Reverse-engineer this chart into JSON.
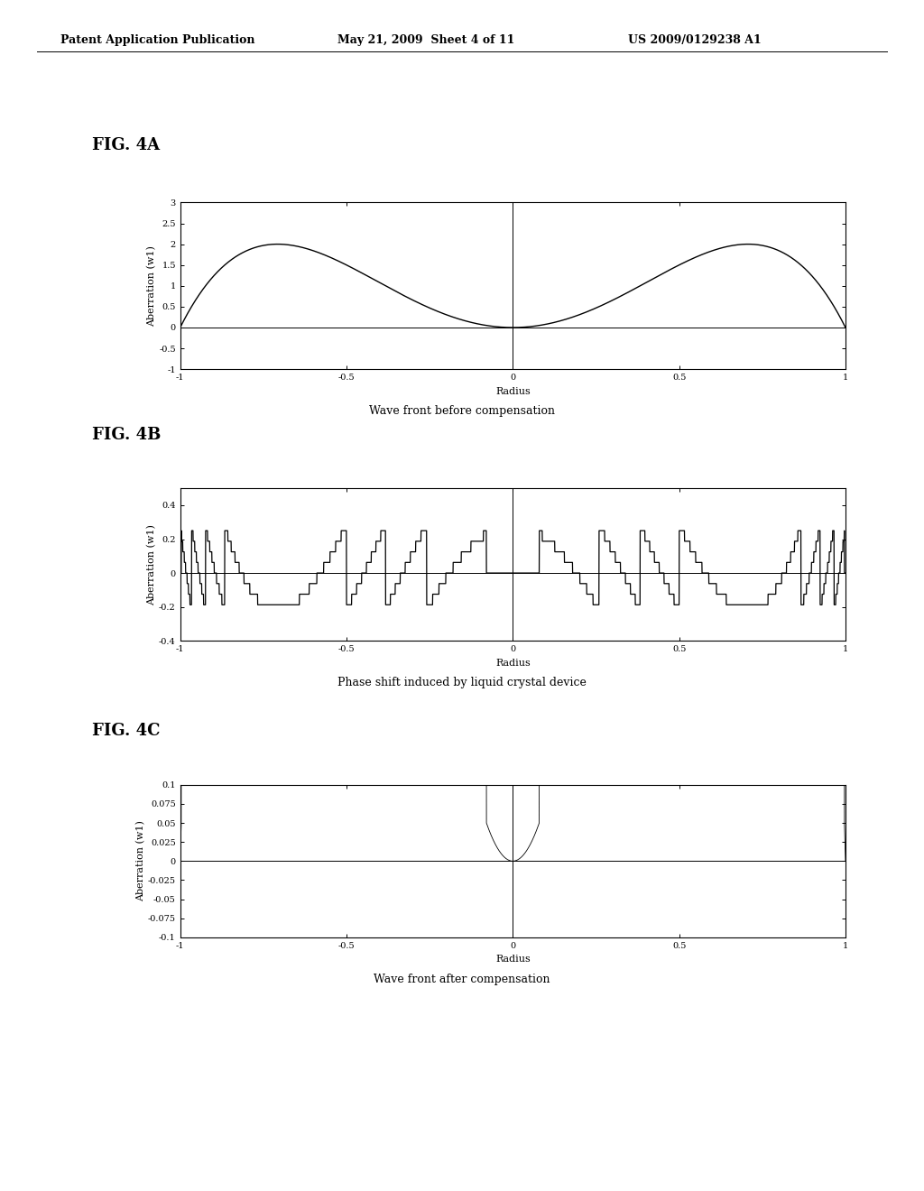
{
  "header_left": "Patent Application Publication",
  "header_mid": "May 21, 2009  Sheet 4 of 11",
  "header_right": "US 2009/0129238 A1",
  "fig_labels": [
    "FIG. 4A",
    "FIG. 4B",
    "FIG. 4C"
  ],
  "captions": [
    "Wave front before compensation",
    "Phase shift induced by liquid crystal device",
    "Wave front after compensation"
  ],
  "fig4a": {
    "xlabel": "Radius",
    "ylabel": "Aberration (w1)",
    "xlim": [
      -1,
      1
    ],
    "ylim": [
      -1,
      3
    ],
    "yticks": [
      -1,
      -0.5,
      0,
      0.5,
      1,
      1.5,
      2,
      2.5,
      3
    ],
    "ytick_labels": [
      "-1",
      "-0.5",
      "0",
      "0.5",
      "1",
      "1.5",
      "2",
      "2.5",
      "3"
    ],
    "xticks": [
      -1,
      -0.5,
      0,
      0.5,
      1
    ],
    "xtick_labels": [
      "-1",
      "-0.5",
      "0",
      "0.5",
      "1"
    ]
  },
  "fig4b": {
    "xlabel": "Radius",
    "ylabel": "Aberration (w1)",
    "xlim": [
      -1,
      1
    ],
    "ylim": [
      -0.4,
      0.5
    ],
    "yticks": [
      -0.4,
      -0.2,
      0,
      0.2,
      0.4
    ],
    "ytick_labels": [
      "-0.4",
      "-0.2",
      "0",
      "0.2",
      "0.4"
    ],
    "xticks": [
      -1,
      -0.5,
      0,
      0.5,
      1
    ],
    "xtick_labels": [
      "-1",
      "-0.5",
      "0",
      "0.5",
      "1"
    ]
  },
  "fig4c": {
    "xlabel": "Radius",
    "ylabel": "Aberration (w1)",
    "xlim": [
      -1,
      1
    ],
    "ylim": [
      -0.1,
      0.1
    ],
    "yticks": [
      -0.1,
      -0.075,
      -0.05,
      -0.025,
      0,
      0.025,
      0.05,
      0.075,
      0.1
    ],
    "ytick_labels": [
      "-0.1",
      "-0.075",
      "-0.05",
      "-0.025",
      "0",
      "0.025",
      "0.05",
      "0.075",
      "0.1"
    ],
    "xticks": [
      -1,
      -0.5,
      0,
      0.5,
      1
    ],
    "xtick_labels": [
      "-1",
      "-0.5",
      "0",
      "0.5",
      "1"
    ]
  },
  "bg_color": "#ffffff",
  "line_color": "#000000",
  "font_size_header": 9,
  "font_size_label": 8,
  "font_size_tick": 7,
  "font_size_fig_label": 13,
  "font_size_caption": 9
}
